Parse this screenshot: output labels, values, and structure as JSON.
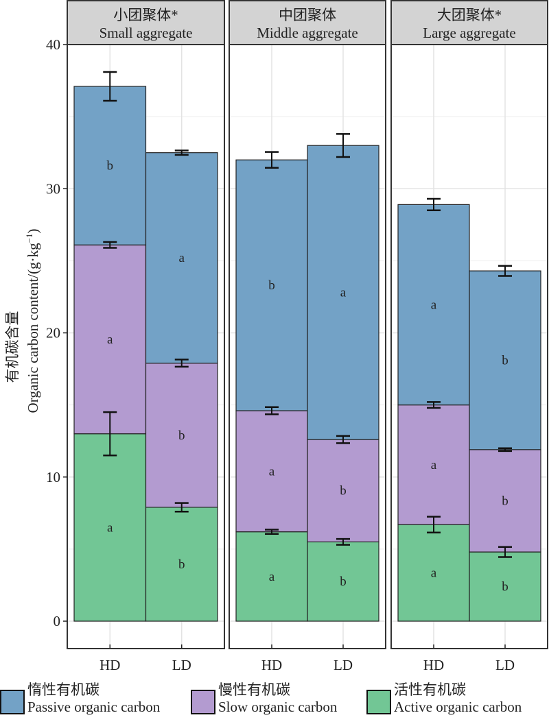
{
  "chart_data": {
    "type": "bar",
    "stacked": true,
    "facets": [
      {
        "title_cn": "小团聚体*",
        "title_en": "Small aggregate"
      },
      {
        "title_cn": "中团聚体",
        "title_en": "Middle aggregate"
      },
      {
        "title_cn": "大团聚体*",
        "title_en": "Large aggregate"
      }
    ],
    "categories": [
      "HD",
      "LD"
    ],
    "series": [
      {
        "key": "active",
        "name_cn": "活性有机碳",
        "name_en": "Active organic carbon",
        "color": "#72c695",
        "values": [
          [
            13.0,
            7.9
          ],
          [
            6.2,
            5.5
          ],
          [
            6.7,
            4.8
          ]
        ],
        "errors": [
          [
            1.5,
            0.3
          ],
          [
            0.15,
            0.2
          ],
          [
            0.55,
            0.35
          ]
        ],
        "letters": [
          [
            "a",
            "b"
          ],
          [
            "a",
            "b"
          ],
          [
            "a",
            "b"
          ]
        ]
      },
      {
        "key": "slow",
        "name_cn": "慢性有机碳",
        "name_en": "Slow organic carbon",
        "color": "#b39bd0",
        "values": [
          [
            13.1,
            10.0
          ],
          [
            8.4,
            7.1
          ],
          [
            8.3,
            7.1
          ]
        ],
        "errors": [
          [
            0.2,
            0.25
          ],
          [
            0.25,
            0.25
          ],
          [
            0.2,
            0.1
          ]
        ],
        "letters": [
          [
            "a",
            "b"
          ],
          [
            "a",
            "b"
          ],
          [
            "a",
            "b"
          ]
        ]
      },
      {
        "key": "passive",
        "name_cn": "惰性有机碳",
        "name_en": "Passive organic carbon",
        "color": "#73a2c6",
        "values": [
          [
            11.0,
            14.6
          ],
          [
            17.4,
            20.4
          ],
          [
            13.9,
            12.4
          ]
        ],
        "errors": [
          [
            1.0,
            0.15
          ],
          [
            0.55,
            0.8
          ],
          [
            0.4,
            0.35
          ]
        ],
        "letters": [
          [
            "b",
            "a"
          ],
          [
            "b",
            "a"
          ],
          [
            "a",
            "b"
          ]
        ]
      }
    ],
    "ylabel_cn": "有机碳含量",
    "ylabel_en": "Organic carbon content/(g·kg",
    "ylabel_unit_sup": "−1",
    "ylabel_close": ")",
    "ylim": [
      0,
      40
    ],
    "yticks": [
      0,
      10,
      20,
      30,
      40
    ],
    "grid": true,
    "legend_position": "bottom",
    "legend_order": [
      "passive",
      "slow",
      "active"
    ]
  }
}
